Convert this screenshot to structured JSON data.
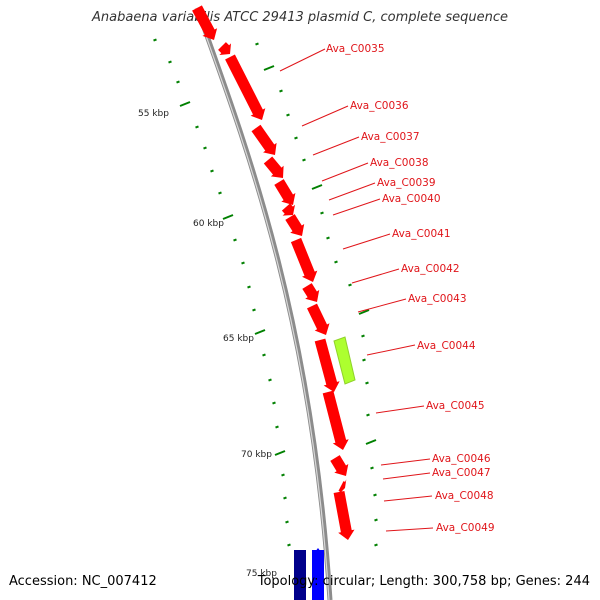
{
  "title": "Anabaena variabilis ATCC 29413 plasmid C, complete sequence",
  "footer": {
    "accession": "Accession: NC_007412",
    "summary": "Topology: circular; Length: 300,758 bp; Genes: 244"
  },
  "colors": {
    "backbone": "#8c8c8c",
    "gene_forward": "#ff0000",
    "highlight": "#adff2f",
    "gene_dark": "#00008b",
    "gene_blue": "#0000ff",
    "tick": "#008000",
    "label": "#e0151a"
  },
  "scale_labels": [
    "55 kbp",
    "60 kbp",
    "65 kbp",
    "70 kbp",
    "75 kbp"
  ],
  "gene_labels": [
    "Ava_C0035",
    "Ava_C0036",
    "Ava_C0037",
    "Ava_C0038",
    "Ava_C0039",
    "Ava_C0040",
    "Ava_C0041",
    "Ava_C0042",
    "Ava_C0043",
    "Ava_C0044",
    "Ava_C0045",
    "Ava_C0046",
    "Ava_C0047",
    "Ava_C0048",
    "Ava_C0049"
  ]
}
